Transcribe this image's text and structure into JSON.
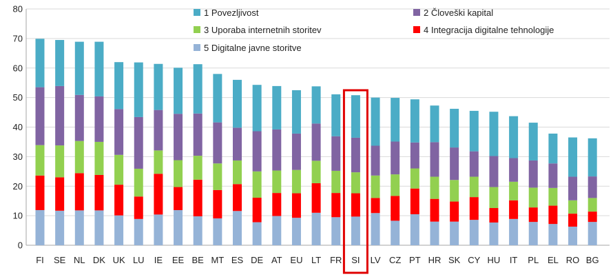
{
  "chart_data": {
    "type": "bar",
    "stacked": true,
    "categories": [
      "FI",
      "SE",
      "NL",
      "DK",
      "UK",
      "LU",
      "IE",
      "EE",
      "BE",
      "MT",
      "ES",
      "DE",
      "AT",
      "EU",
      "LT",
      "FR",
      "SI",
      "LV",
      "CZ",
      "PT",
      "HR",
      "SK",
      "CY",
      "HU",
      "IT",
      "PL",
      "EL",
      "RO",
      "BG"
    ],
    "highlight": "SI",
    "highlight_color": "#e00000",
    "ylim": [
      0,
      80
    ],
    "yticks": [
      0,
      10,
      20,
      30,
      40,
      50,
      60,
      70,
      80
    ],
    "grid": true,
    "legend_position": "top",
    "series": [
      {
        "name": "5 Digitalne javne storitve",
        "color": "#95b3d7",
        "values": [
          11.9,
          11.7,
          11.8,
          11.8,
          10.1,
          8.9,
          10.4,
          11.9,
          9.8,
          9.1,
          11.6,
          7.8,
          9.9,
          9.3,
          11.0,
          9.5,
          9.7,
          10.9,
          8.3,
          10.5,
          8.0,
          8.0,
          8.6,
          7.7,
          8.9,
          7.9,
          7.2,
          6.3,
          7.9
        ]
      },
      {
        "name": "4 Integracija digitalne tehnologije",
        "color": "#ff0000",
        "values": [
          11.7,
          11.3,
          12.6,
          12.0,
          10.4,
          7.6,
          13.8,
          7.8,
          12.4,
          9.6,
          9.1,
          8.3,
          7.8,
          8.3,
          10.0,
          8.2,
          7.9,
          5.1,
          8.4,
          8.7,
          7.7,
          6.8,
          7.7,
          4.9,
          6.3,
          4.9,
          6.2,
          4.4,
          3.5
        ]
      },
      {
        "name": "3 Uporaba internetnih storitev",
        "color": "#92d050",
        "values": [
          10.3,
          10.8,
          10.9,
          11.2,
          10.1,
          9.4,
          7.9,
          9.1,
          8.1,
          9.0,
          8.0,
          8.9,
          7.6,
          7.9,
          7.6,
          7.5,
          7.1,
          7.6,
          7.3,
          6.8,
          7.5,
          7.3,
          6.9,
          7.1,
          6.3,
          6.7,
          6.0,
          4.5,
          4.6
        ]
      },
      {
        "name": "2 Človeški kapital",
        "color": "#8064a2",
        "values": [
          19.6,
          20.1,
          15.6,
          15.4,
          15.5,
          17.5,
          13.7,
          15.7,
          14.3,
          13.9,
          11.1,
          13.6,
          13.9,
          12.3,
          12.6,
          11.7,
          11.7,
          10.1,
          11.1,
          8.8,
          11.7,
          11.0,
          8.6,
          10.5,
          8.0,
          9.2,
          8.3,
          8.0,
          7.3
        ]
      },
      {
        "name": "1 Povezljivost",
        "color": "#4bacc6",
        "values": [
          16.4,
          15.6,
          18.0,
          18.5,
          15.9,
          18.5,
          15.6,
          15.6,
          16.7,
          16.4,
          16.2,
          15.7,
          14.7,
          14.7,
          12.6,
          14.2,
          14.4,
          16.3,
          14.8,
          14.6,
          12.4,
          13.1,
          13.7,
          15.0,
          14.2,
          12.8,
          10.1,
          13.3,
          12.9
        ]
      }
    ]
  }
}
